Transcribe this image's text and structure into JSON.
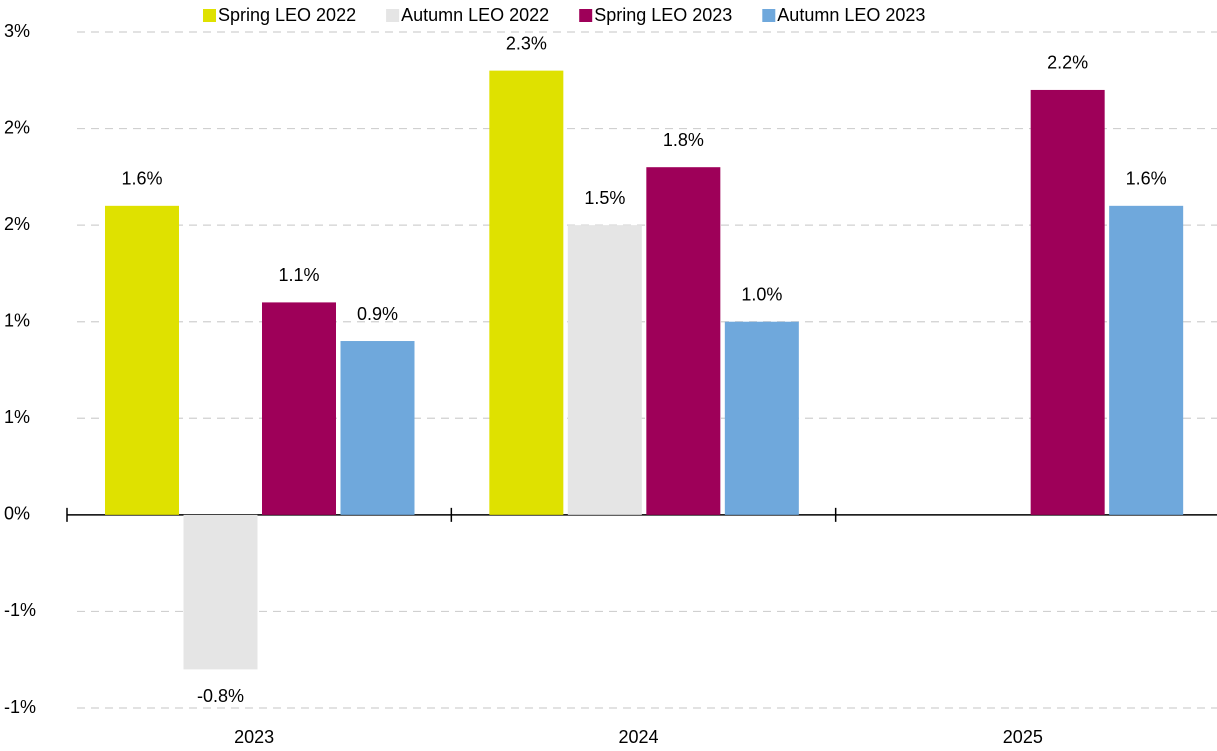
{
  "chart_data": {
    "type": "bar",
    "categories": [
      "2023",
      "2024",
      "2025"
    ],
    "series": [
      {
        "name": "Spring LEO 2022",
        "color": "#dfe100",
        "values": [
          1.6,
          2.3,
          null
        ],
        "value_labels": [
          "1.6%",
          "2.3%",
          null
        ]
      },
      {
        "name": "Autumn LEO 2022",
        "color": "#e5e5e5",
        "values": [
          -0.8,
          1.5,
          null
        ],
        "value_labels": [
          "-0.8%",
          "1.5%",
          null
        ]
      },
      {
        "name": "Spring LEO 2023",
        "color": "#9e0059",
        "values": [
          1.1,
          1.8,
          2.2
        ],
        "value_labels": [
          "1.1%",
          "1.8%",
          "2.2%"
        ]
      },
      {
        "name": "Autumn LEO 2023",
        "color": "#6fa8dc",
        "values": [
          0.9,
          1.0,
          1.6
        ],
        "value_labels": [
          "0.9%",
          "1.0%",
          "1.6%"
        ]
      }
    ],
    "ylim": [
      -1,
      2.5
    ],
    "yticks": [
      {
        "value": -1,
        "label": "-1%"
      },
      {
        "value": -0.5,
        "label": "-1%"
      },
      {
        "value": 0,
        "label": "0%"
      },
      {
        "value": 0.5,
        "label": "1%"
      },
      {
        "value": 1,
        "label": "1%"
      },
      {
        "value": 1.5,
        "label": "2%"
      },
      {
        "value": 2,
        "label": "2%"
      },
      {
        "value": 2.5,
        "label": "3%"
      }
    ],
    "grid": true,
    "legend": "top"
  }
}
